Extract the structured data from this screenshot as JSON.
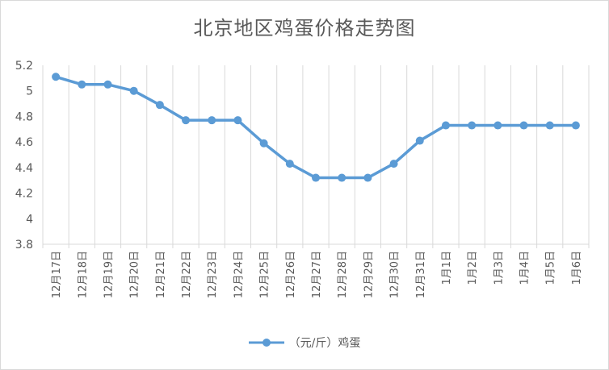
{
  "chart_data": {
    "type": "line",
    "title": "北京地区鸡蛋价格走势图",
    "categories": [
      "12月17日",
      "12月18日",
      "12月19日",
      "12月20日",
      "12月21日",
      "12月22日",
      "12月23日",
      "12月24日",
      "12月25日",
      "12月26日",
      "12月27日",
      "12月28日",
      "12月29日",
      "12月30日",
      "12月31日",
      "1月1日",
      "1月2日",
      "1月3日",
      "1月4日",
      "1月5日",
      "1月6日"
    ],
    "series": [
      {
        "name": "（元/斤）鸡蛋",
        "values": [
          5.11,
          5.05,
          5.05,
          5.0,
          4.89,
          4.77,
          4.77,
          4.77,
          4.59,
          4.43,
          4.32,
          4.32,
          4.32,
          4.43,
          4.61,
          4.73,
          4.73,
          4.73,
          4.73,
          4.73,
          4.73
        ]
      }
    ],
    "ylim": [
      3.8,
      5.2
    ],
    "yticks": [
      3.8,
      4,
      4.2,
      4.4,
      4.6,
      4.8,
      5,
      5.2
    ],
    "grid": "vertical",
    "legend": "bottom",
    "colors": {
      "line": "#5b9bd5",
      "grid": "#d9d9d9",
      "text": "#595959"
    }
  }
}
